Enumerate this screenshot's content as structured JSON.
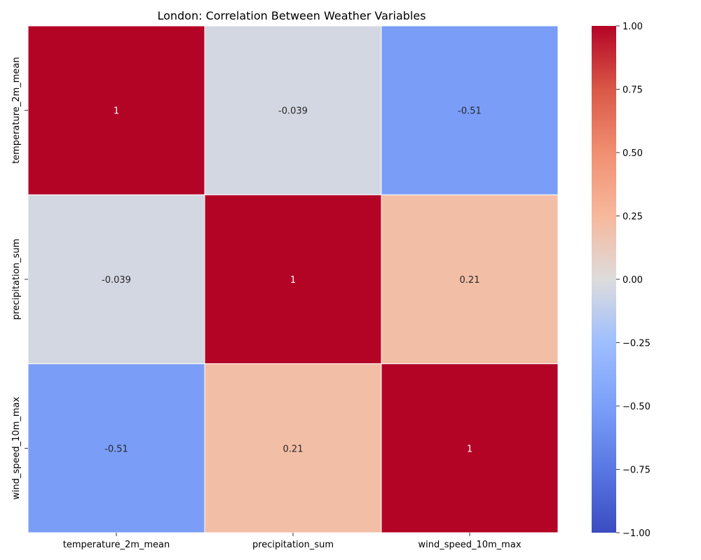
{
  "chart_data": {
    "type": "heatmap",
    "title": "London: Correlation Between Weather Variables",
    "x_labels": [
      "temperature_2m_mean",
      "precipitation_sum",
      "wind_speed_10m_max"
    ],
    "y_labels": [
      "temperature_2m_mean",
      "precipitation_sum",
      "wind_speed_10m_max"
    ],
    "values": [
      [
        1,
        -0.039,
        -0.51
      ],
      [
        -0.039,
        1,
        0.21
      ],
      [
        -0.51,
        0.21,
        1
      ]
    ],
    "value_labels": [
      [
        "1",
        "-0.039",
        "-0.51"
      ],
      [
        "-0.039",
        "1",
        "0.21"
      ],
      [
        "-0.51",
        "0.21",
        "1"
      ]
    ],
    "colormap": "coolwarm",
    "vmin": -1,
    "vmax": 1,
    "colorbar_ticks": [
      1.0,
      0.75,
      0.5,
      0.25,
      0.0,
      -0.25,
      -0.5,
      -0.75,
      -1.0
    ],
    "colorbar_tick_labels": [
      "1.00",
      "0.75",
      "0.50",
      "0.25",
      "0.00",
      "−0.25",
      "−0.50",
      "−0.75",
      "−1.00"
    ]
  }
}
